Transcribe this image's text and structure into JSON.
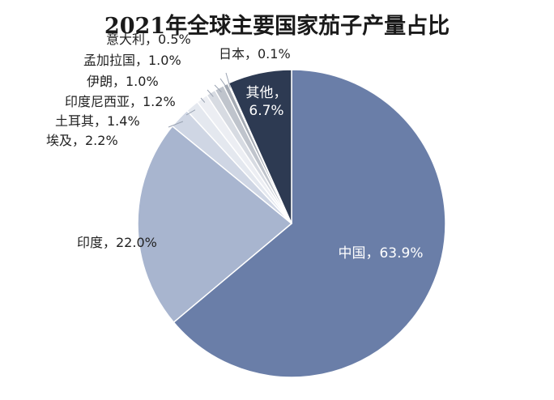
{
  "chart_data": {
    "type": "pie",
    "title": "2021年全球主要国家茄子产量占比",
    "start": "top",
    "direction": "clockwise",
    "slices": [
      {
        "name": "中国",
        "value": 63.9,
        "label": "中国，63.9%",
        "color": "#6a7ea8"
      },
      {
        "name": "印度",
        "value": 22.0,
        "label": "印度，22.0%",
        "color": "#a8b5cf"
      },
      {
        "name": "埃及",
        "value": 2.2,
        "label": "埃及，2.2%",
        "color": "#cfd6e4"
      },
      {
        "name": "土耳其",
        "value": 1.4,
        "label": "土耳其，1.4%",
        "color": "#e4e8ef"
      },
      {
        "name": "印度尼西亚",
        "value": 1.2,
        "label": "印度尼西亚，1.2%",
        "color": "#eceef3"
      },
      {
        "name": "伊朗",
        "value": 1.0,
        "label": "伊朗，1.0%",
        "color": "#d7dbe2"
      },
      {
        "name": "孟加拉国",
        "value": 1.0,
        "label": "孟加拉国，1.0%",
        "color": "#bfc4cc"
      },
      {
        "name": "意大利",
        "value": 0.5,
        "label": "意大利，0.5%",
        "color": "#a5abb4"
      },
      {
        "name": "日本",
        "value": 0.1,
        "label": "日本，0.1%",
        "color": "#8e949d"
      },
      {
        "name": "其他",
        "value": 6.7,
        "label": "其他，6.7%",
        "label_line1": "其他，",
        "label_line2": "6.7%",
        "color": "#2d3a52"
      }
    ]
  }
}
